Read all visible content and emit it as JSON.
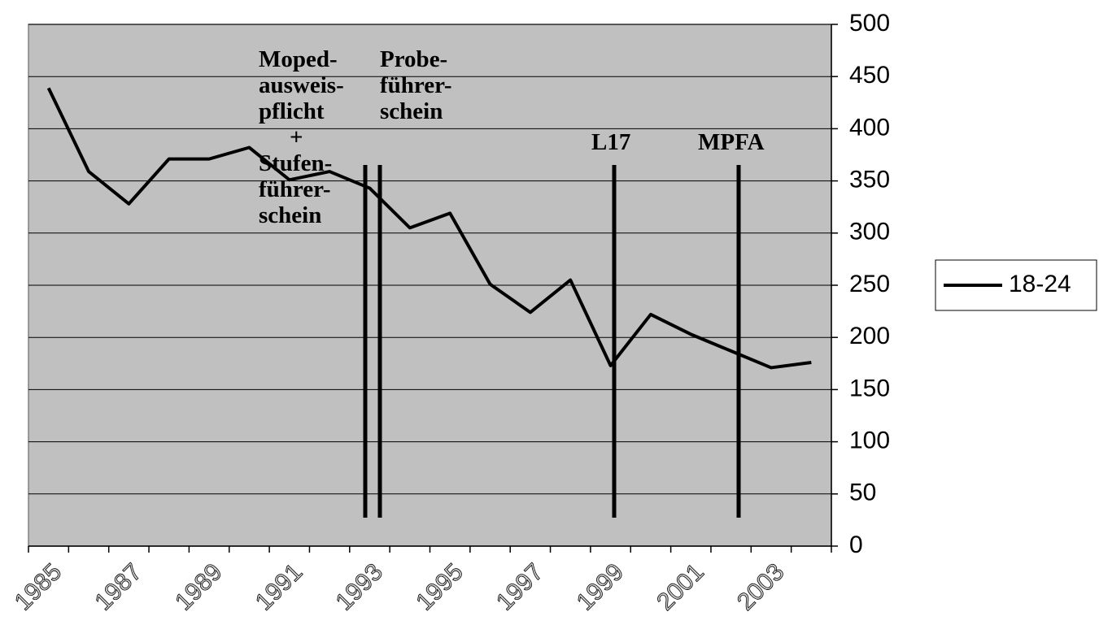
{
  "chart_data": {
    "type": "line",
    "categories": [
      "1985",
      null,
      "1987",
      null,
      "1989",
      null,
      "1991",
      null,
      "1993",
      null,
      "1995",
      null,
      "1997",
      null,
      "1999",
      null,
      "2001",
      null,
      "2003",
      null
    ],
    "series": [
      {
        "name": "18-24",
        "color": "#000000",
        "values": [
          439,
          359,
          328,
          371,
          371,
          382,
          351,
          359,
          343,
          305,
          319,
          251,
          224,
          255,
          173,
          222,
          203,
          187,
          171,
          176
        ]
      }
    ],
    "ylim": [
      0,
      500
    ],
    "yticks": [
      0,
      50,
      100,
      150,
      200,
      250,
      300,
      350,
      400,
      450,
      500
    ],
    "grid": true,
    "background": "#c0c0c0",
    "legend": "right",
    "annotations": [
      {
        "lines": [
          "Moped-",
          "ausweis-",
          "pflicht",
          "+",
          "Stufen-",
          "führer-",
          "schein"
        ]
      },
      {
        "lines": [
          "Probe-",
          "führer-",
          "schein"
        ]
      },
      {
        "lines": [
          "L17"
        ]
      },
      {
        "lines": [
          "MPFA"
        ]
      }
    ]
  }
}
